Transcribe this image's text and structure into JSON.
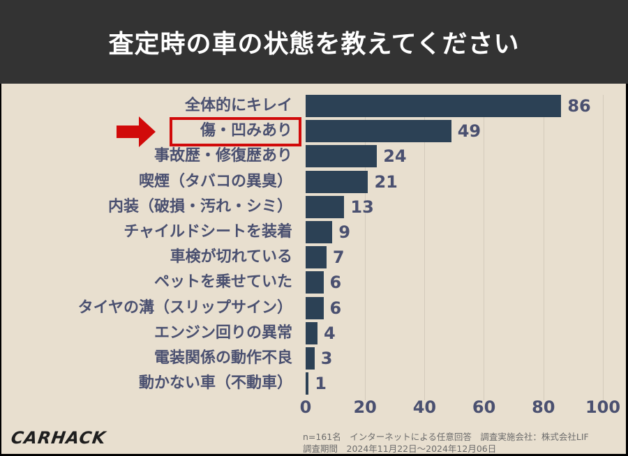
{
  "header": {
    "title": "査定時の車の状態を教えてください"
  },
  "colors": {
    "header_bg": "#333333",
    "panel_bg": "#e8dfcf",
    "bar": "#2c4155",
    "label": "#4a5070",
    "highlight": "#d10a0a"
  },
  "highlight": {
    "label": "傷・凹みあり",
    "marker": "arrow-right-icon"
  },
  "chart_data": {
    "type": "bar",
    "orientation": "horizontal",
    "title": "査定時の車の状態を教えてください",
    "categories": [
      "全体的にキレイ",
      "傷・凹みあり",
      "事故歴・修復歴あり",
      "喫煙（タバコの異臭）",
      "内装（破損・汚れ・シミ）",
      "チャイルドシートを装着",
      "車検が切れている",
      "ペットを乗せていた",
      "タイヤの溝（スリップサイン）",
      "エンジン回りの異常",
      "電装関係の動作不良",
      "動かない車（不動車）"
    ],
    "values": [
      86,
      49,
      24,
      21,
      13,
      9,
      7,
      6,
      6,
      4,
      3,
      1
    ],
    "value_labels": [
      "86",
      "49",
      "24",
      "21",
      "13",
      "9",
      "7",
      "6",
      "6",
      "4",
      "3",
      "1"
    ],
    "xlabel": "",
    "ylabel": "",
    "xlim": [
      0,
      100
    ],
    "xticks": [
      "0",
      "20",
      "40",
      "60",
      "80",
      "100"
    ],
    "grid": "vertical",
    "legend": "none"
  },
  "footer": {
    "logo": "CARHACK",
    "note_line1": "n=161名　インターネットによる任意回答　調査実施会社：株式会社LIF",
    "note_line2": "調査期間　2024年11月22日～2024年12月06日"
  }
}
